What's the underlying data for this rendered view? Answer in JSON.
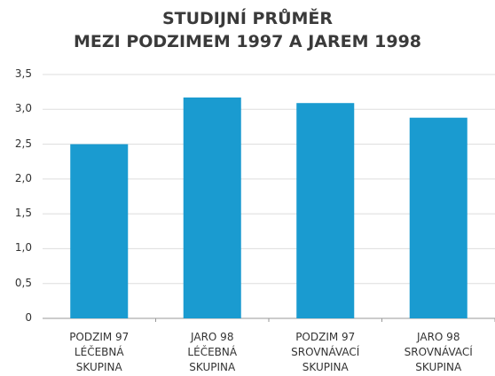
{
  "chart_data": {
    "type": "bar",
    "title": "STUDIJNÍ PRŮMĚR\nMEZI PODZIMEM 1997 A JAREM 1998",
    "categories": [
      "PODZIM 97\nLÉČEBNÁ\nSKUPINA",
      "JARO 98\nLÉČEBNÁ\nSKUPINA",
      "PODZIM 97\nSROVNÁVACÍ\nSKUPINA",
      "JARO 98\nSROVNÁVACÍ\nSKUPINA"
    ],
    "values": [
      2.5,
      3.17,
      3.09,
      2.88
    ],
    "color": "#1a9bd0",
    "ylim": [
      0,
      3.5
    ],
    "yticks": [
      0,
      {
        "value": 0.5,
        "label": "0,5"
      },
      {
        "value": 1,
        "label": "1,0"
      },
      {
        "value": 1.5,
        "label": "1,5"
      },
      {
        "value": 2,
        "label": "2,0"
      },
      {
        "value": 2.5,
        "label": "2,5"
      },
      {
        "value": 3,
        "label": "3,0"
      },
      {
        "value": 3.5,
        "label": "3,5"
      }
    ],
    "grid": true
  }
}
